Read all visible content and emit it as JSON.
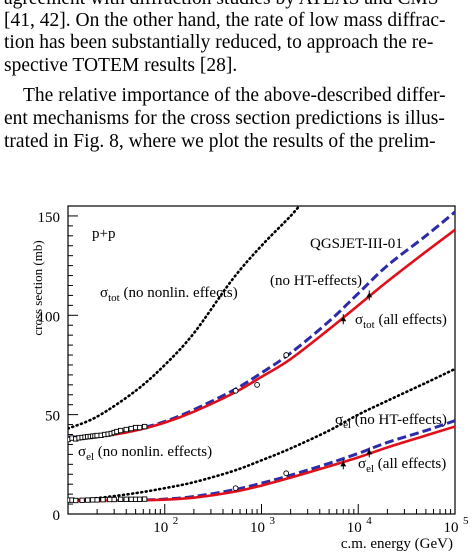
{
  "paragraph1": [
    "agreement with diffraction studies by ATLAS and CMS",
    "[41, 42]. On the other hand, the rate of low mass diffrac-",
    "tion has been substantially reduced, to approach the re-",
    "spective TOTEM results [28]."
  ],
  "paragraph2": [
    "The relative importance of the above-described differ-",
    "ent mechanisms for the cross section predictions is illus-",
    "trated in Fig. 8, where we plot the results of the prelim-"
  ],
  "chart_data": {
    "type": "line",
    "xlabel": "c.m. energy (GeV)",
    "ylabel": "cross section (mb)",
    "xscale": "log",
    "xlim": [
      10,
      100000
    ],
    "ylim": [
      0,
      155
    ],
    "yticks": [
      0,
      50,
      100,
      150
    ],
    "xtick_labels": [
      {
        "base": "10",
        "exp": "2",
        "value": 100
      },
      {
        "base": "10",
        "exp": "3",
        "value": 1000
      },
      {
        "base": "10",
        "exp": "4",
        "value": 10000
      },
      {
        "base": "10",
        "exp": "5",
        "value": 100000
      }
    ],
    "annotations": {
      "reaction": "p+p",
      "model": "QGSJET-III-01",
      "sigma_tot_nonlin": {
        "sym": "σ",
        "sub": "tot",
        "rest": " (no nonlin. effects)"
      },
      "no_ht_tot": {
        "sym": "",
        "sub": "",
        "rest": "(no HT-effects)"
      },
      "sigma_tot_all": {
        "sym": "σ",
        "sub": "tot",
        "rest": " (all effects)"
      },
      "sigma_el_noht": {
        "sym": "σ",
        "sub": "el",
        "rest": " (no HT-effects)"
      },
      "sigma_el_nonlin": {
        "sym": "σ",
        "sub": "el",
        "rest": " (no nonlin. effects)"
      },
      "sigma_el_all": {
        "sym": "σ",
        "sub": "el",
        "rest": " (all effects)"
      }
    },
    "colors": {
      "all_effects": "#e0101a",
      "no_ht": "#2c2ca8",
      "no_nonlin": "#000000"
    },
    "series": [
      {
        "key": "tot_nonlin",
        "style": "dotted",
        "x": [
          10,
          20,
          50,
          100,
          200,
          500,
          1000,
          2000,
          3000
        ],
        "y": [
          43,
          49,
          62,
          75,
          91,
          118,
          135,
          150,
          160
        ]
      },
      {
        "key": "tot_noht",
        "style": "dashed",
        "x": [
          10,
          20,
          30,
          50,
          100,
          200,
          500,
          1000,
          2000,
          5000,
          10000,
          20000,
          50000,
          100000
        ],
        "y": [
          38.5,
          39.5,
          40.5,
          42.5,
          46.5,
          52.5,
          62,
          71,
          81,
          97,
          111,
          125,
          140,
          152
        ]
      },
      {
        "key": "tot_all",
        "style": "solid",
        "x": [
          10,
          20,
          30,
          50,
          100,
          200,
          500,
          1000,
          2000,
          5000,
          10000,
          20000,
          50000,
          100000
        ],
        "y": [
          38,
          39,
          40,
          42,
          46,
          51.5,
          60.5,
          69,
          78,
          93,
          105,
          117,
          132,
          143
        ]
      },
      {
        "key": "el_nonlin",
        "style": "dotted",
        "x": [
          10,
          20,
          50,
          100,
          200,
          500,
          1000,
          2000,
          5000,
          10000,
          20000,
          50000,
          100000
        ],
        "y": [
          7,
          8,
          10.5,
          13,
          16,
          21.5,
          27,
          33,
          42,
          50,
          57,
          66,
          73
        ]
      },
      {
        "key": "el_noht",
        "style": "dashed",
        "x": [
          10,
          50,
          100,
          200,
          500,
          1000,
          2000,
          5000,
          10000,
          20000,
          50000,
          100000
        ],
        "y": [
          6.8,
          7,
          7.5,
          8.8,
          12,
          15.5,
          19.5,
          25.5,
          30.5,
          36,
          42,
          47
        ]
      },
      {
        "key": "el_all",
        "style": "solid",
        "x": [
          10,
          50,
          100,
          200,
          500,
          1000,
          2000,
          5000,
          10000,
          20000,
          50000,
          100000
        ],
        "y": [
          6.6,
          6.9,
          7.2,
          8.2,
          11,
          14.3,
          18.3,
          24,
          28.5,
          33.5,
          39.5,
          44
        ]
      }
    ],
    "data_points": {
      "tot": {
        "x": [
          10,
          11,
          12,
          13,
          14,
          15,
          16,
          17,
          18,
          19,
          20,
          22,
          24,
          26,
          28,
          30,
          32,
          35,
          40,
          45,
          50,
          55,
          62,
          540,
          900,
          1800,
          7000,
          13000
        ],
        "y": [
          37.5,
          38.2,
          37.8,
          38.3,
          38.5,
          38.7,
          38.9,
          39.0,
          39.2,
          39.3,
          39.5,
          39.6,
          40,
          40.2,
          40.5,
          41,
          41.5,
          42,
          42.5,
          43,
          43.5,
          43.5,
          44,
          62,
          65,
          80,
          98,
          110
        ]
      },
      "el": {
        "x": [
          10,
          11,
          12,
          14,
          16,
          18,
          20,
          23,
          27,
          30,
          35,
          40,
          45,
          50,
          55,
          62,
          540,
          1800,
          7000,
          13000
        ],
        "y": [
          7,
          7,
          6.8,
          6.9,
          7,
          7.1,
          7.1,
          7.2,
          7.3,
          7.3,
          7.4,
          7.4,
          7.4,
          7.4,
          7.4,
          7.5,
          13,
          20.5,
          25,
          31
        ]
      }
    }
  }
}
